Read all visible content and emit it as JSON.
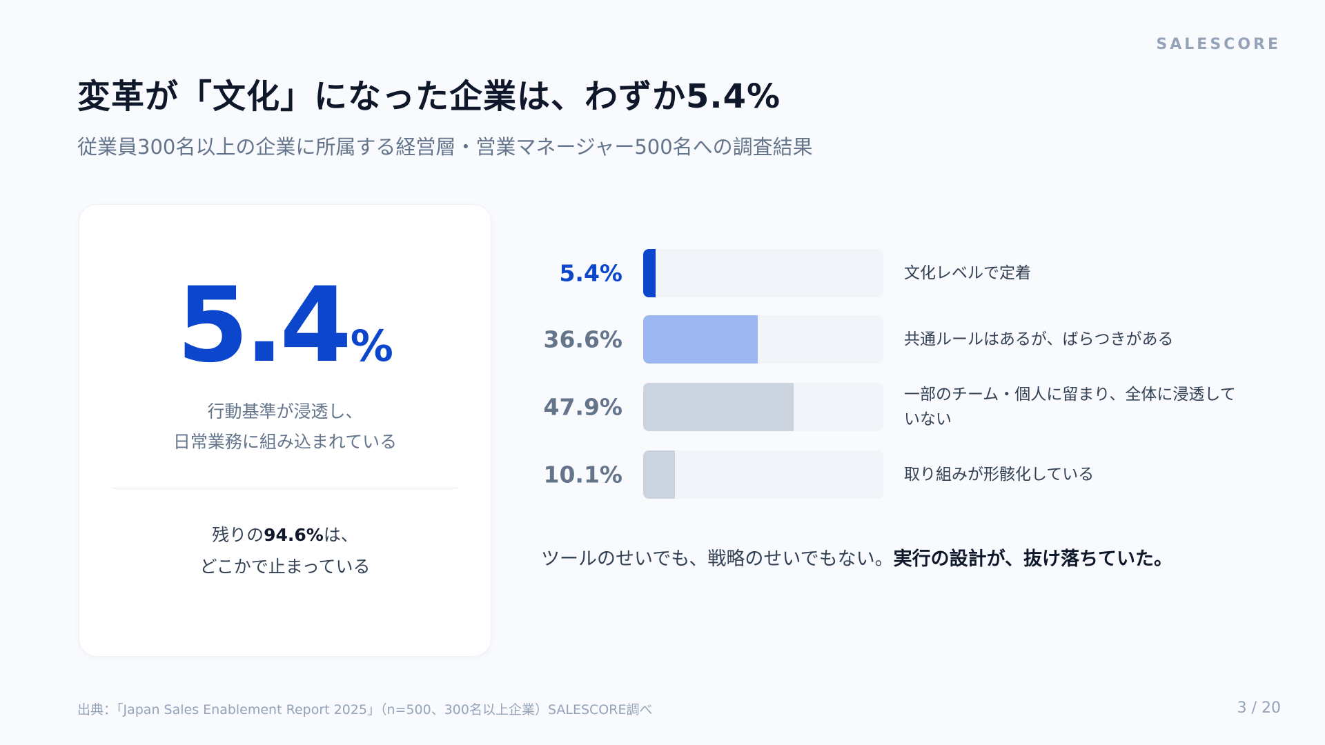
{
  "brand": "SALESCORE",
  "title": "変革が「文化」になった企業は、わずか5.4%",
  "subtitle": "従業員300名以上の企業に所属する経営層・営業マネージャー500名への調査結果",
  "card": {
    "big_number": "5.4",
    "big_unit": "%",
    "desc_line1": "行動基準が浸透し、",
    "desc_line2": "日常業務に組み込まれている",
    "rest_prefix": "残りの",
    "rest_value": "94.6%",
    "rest_suffix": "は、",
    "rest_line2": "どこかで止まっている"
  },
  "colors": {
    "accent": "#0b46cc",
    "light_blue": "#9db7f0",
    "gray_fill": "#cbd3de",
    "track": "#f1f4f8"
  },
  "chart_data": {
    "type": "bar",
    "orientation": "horizontal",
    "categories": [
      "文化レベルで定着",
      "共通ルールはあるが、ばらつきがある",
      "一部のチーム・個人に留まり、全体に浸透していない",
      "取り組みが形骸化している"
    ],
    "value_labels": [
      "5.4%",
      "36.6%",
      "47.9%",
      "10.1%"
    ],
    "values": [
      5.4,
      36.6,
      47.9,
      10.1
    ],
    "bar_colors": [
      "#0b46cc",
      "#9db7f0",
      "#cbd3de",
      "#cbd3de"
    ],
    "xlim": [
      0,
      100
    ]
  },
  "footnote": {
    "normal": "ツールのせいでも、戦略のせいでもない。",
    "bold": "実行の設計が、抜け落ちていた。"
  },
  "source": "出典：「Japan Sales Enablement Report 2025」（n=500、300名以上企業）SALESCORE調べ",
  "page_number": "3 / 20"
}
